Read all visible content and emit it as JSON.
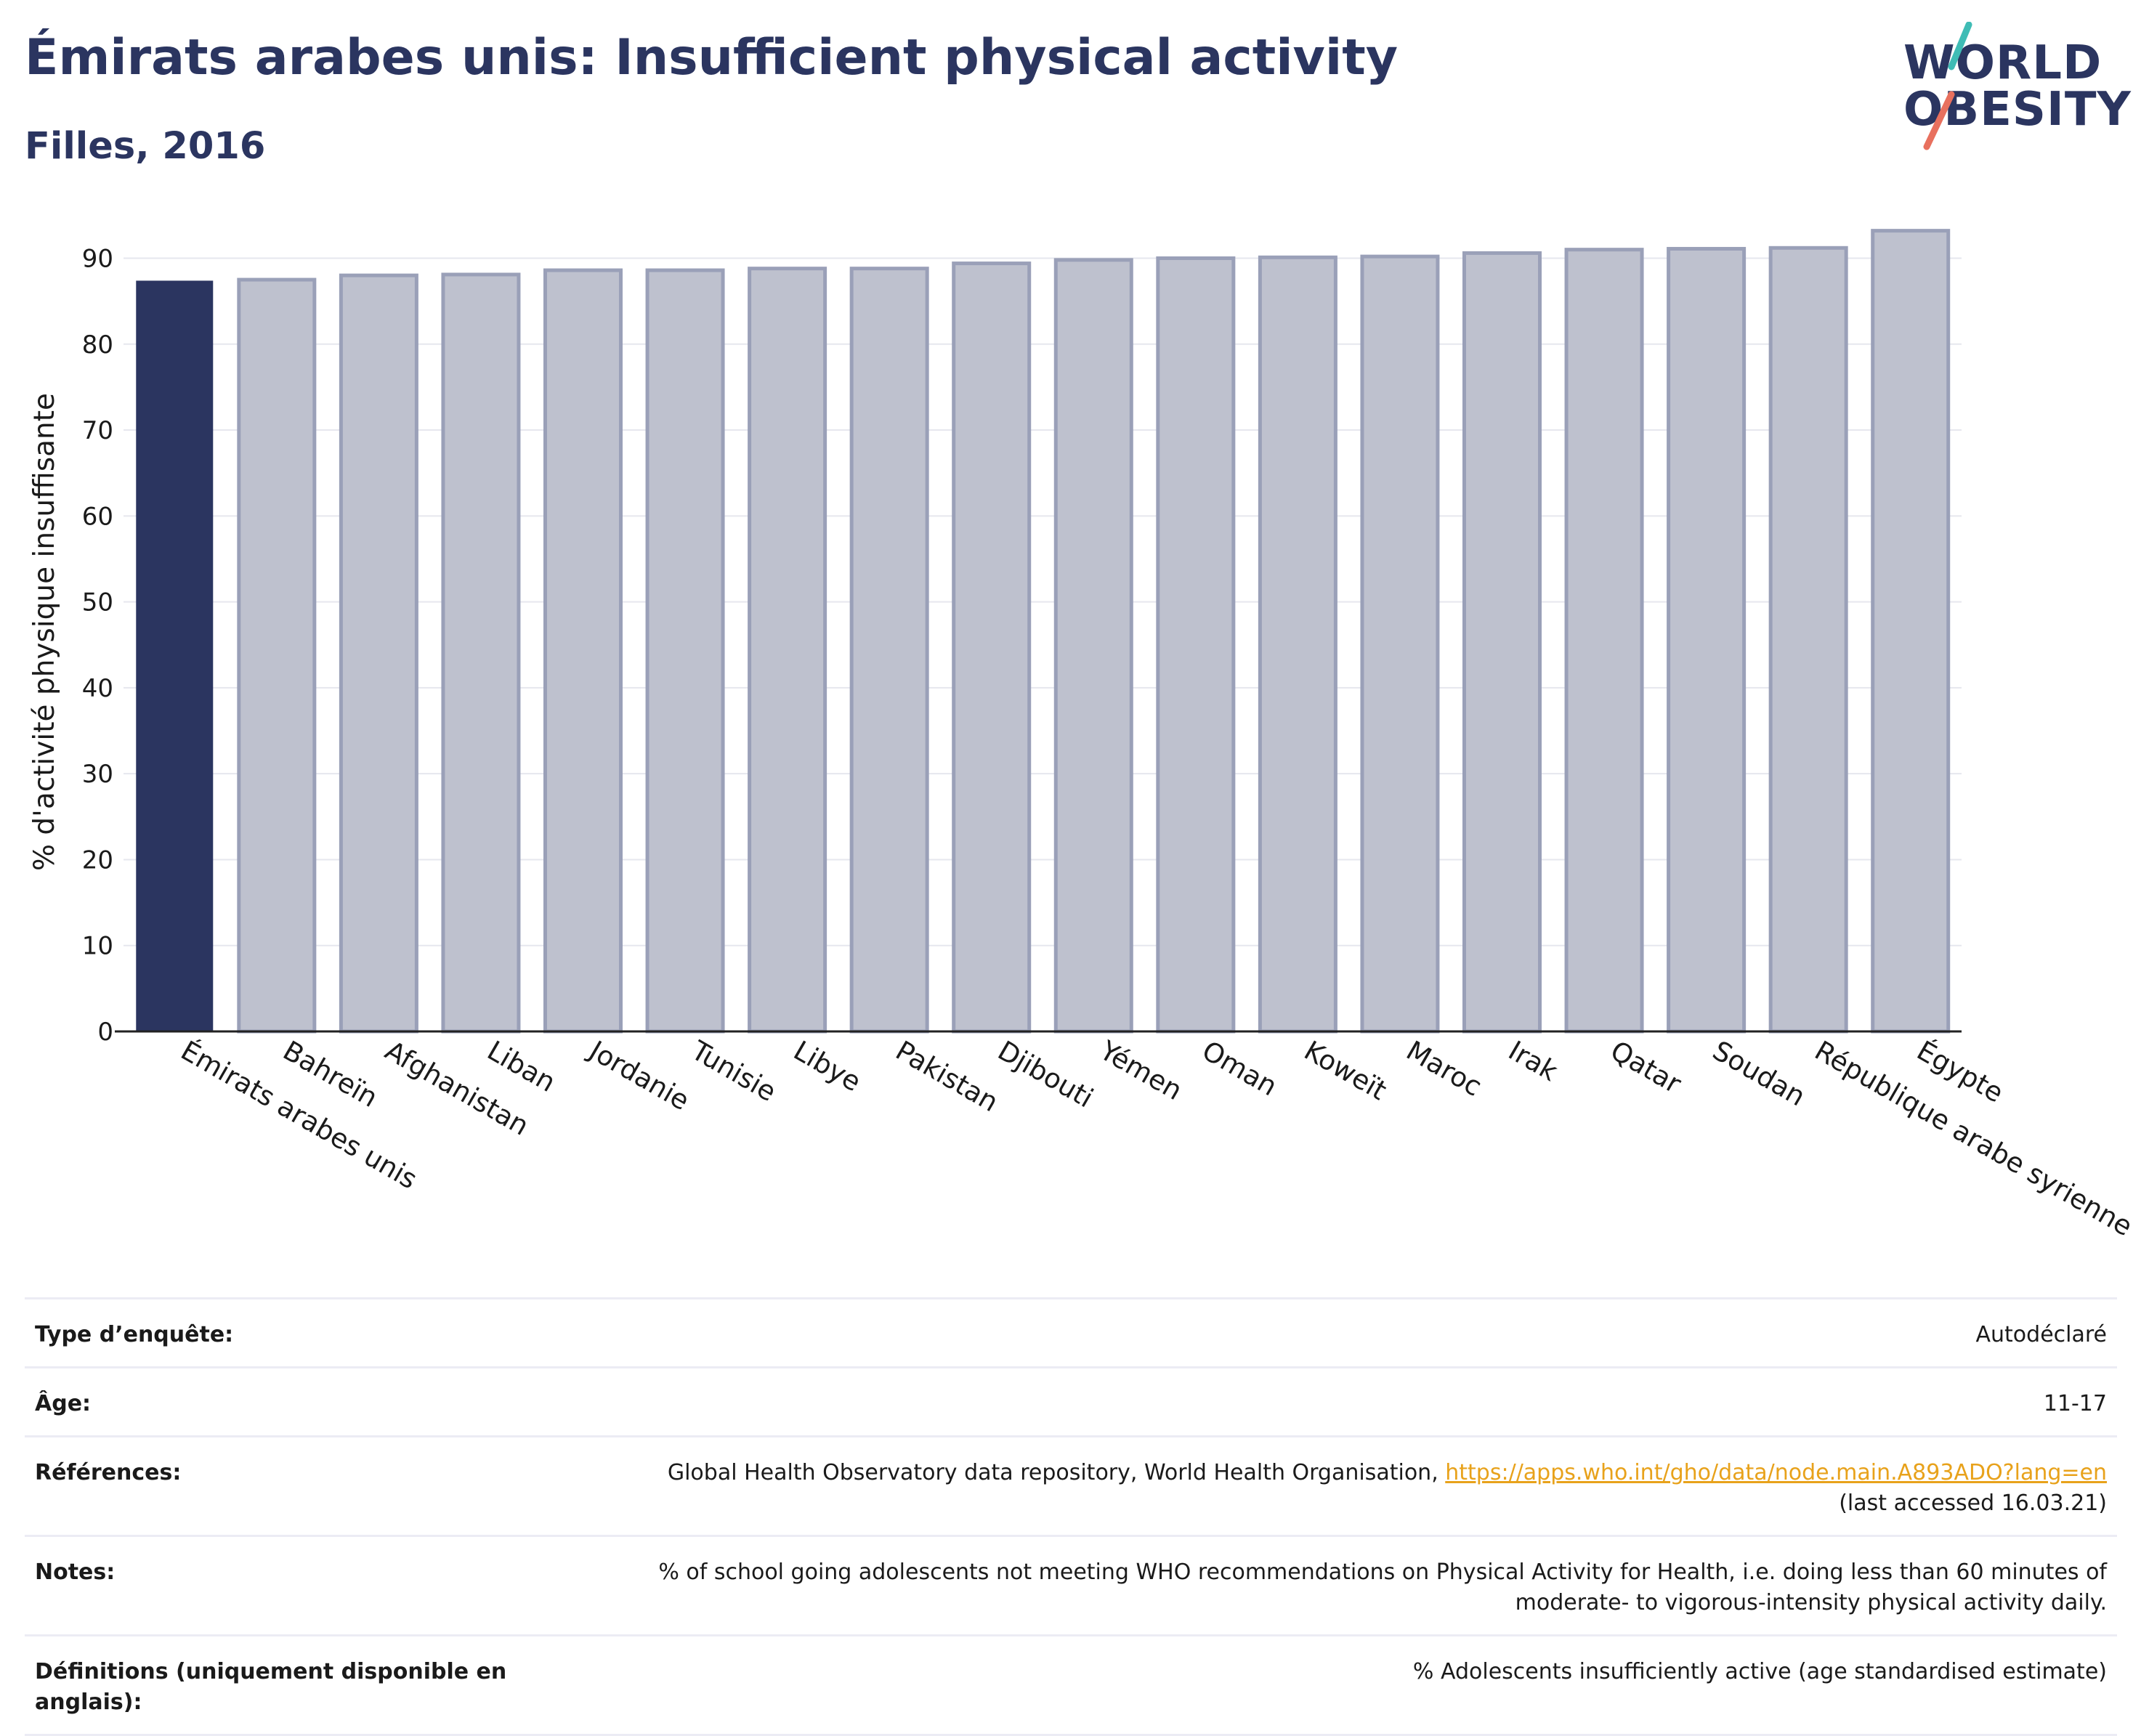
{
  "title": "Émirats arabes unis: Insufficient physical activity",
  "subtitle": "Filles, 2016",
  "logo": {
    "line1": "WORLD",
    "line2": "OBESITY"
  },
  "colors": {
    "highlight": "#2b3560",
    "bar_fill": "#bec1ce",
    "bar_stroke": "#9aa0b8",
    "grid": "#e6e7ee",
    "link": "#e8a21b",
    "logo_slash_top": "#3fbcb5",
    "logo_slash_bottom": "#e8705e"
  },
  "chart_data": {
    "type": "bar",
    "ylabel": "% d'activité physique insuffisante",
    "ylim": [
      0,
      93
    ],
    "yticks": [
      0,
      10,
      20,
      30,
      40,
      50,
      60,
      70,
      80,
      90
    ],
    "grid": true,
    "highlight_category": "Émirats arabes unis",
    "categories": [
      "Émirats arabes unis",
      "Bahreïn",
      "Afghanistan",
      "Liban",
      "Jordanie",
      "Tunisie",
      "Libye",
      "Pakistan",
      "Djibouti",
      "Yémen",
      "Oman",
      "Koweït",
      "Maroc",
      "Irak",
      "Qatar",
      "Soudan",
      "République arabe syrienne",
      "Égypte"
    ],
    "values": [
      87.3,
      87.5,
      88.0,
      88.1,
      88.6,
      88.6,
      88.8,
      88.8,
      89.4,
      89.8,
      90.0,
      90.1,
      90.2,
      90.6,
      91.0,
      91.1,
      91.2,
      93.2
    ]
  },
  "info": {
    "survey_type": {
      "label": "Type d’enquête:",
      "value": "Autodéclaré"
    },
    "age": {
      "label": "Âge:",
      "value": "11-17"
    },
    "references": {
      "label": "Références:",
      "text": "Global Health Observatory data repository, World Health Organisation, ",
      "link": "https://apps.who.int/gho/data/node.main.A893ADO?lang=en",
      "suffix": "(last accessed 16.03.21)"
    },
    "notes": {
      "label": "Notes:",
      "line1": "% of school going adolescents not meeting WHO recommendations on Physical Activity for Health, i.e. doing less than 60 minutes of",
      "line2": "moderate- to vigorous-intensity physical activity daily."
    },
    "definitions": {
      "label": "Définitions (uniquement disponible en anglais):",
      "value": "% Adolescents insufficiently active (age standardised estimate)"
    }
  }
}
